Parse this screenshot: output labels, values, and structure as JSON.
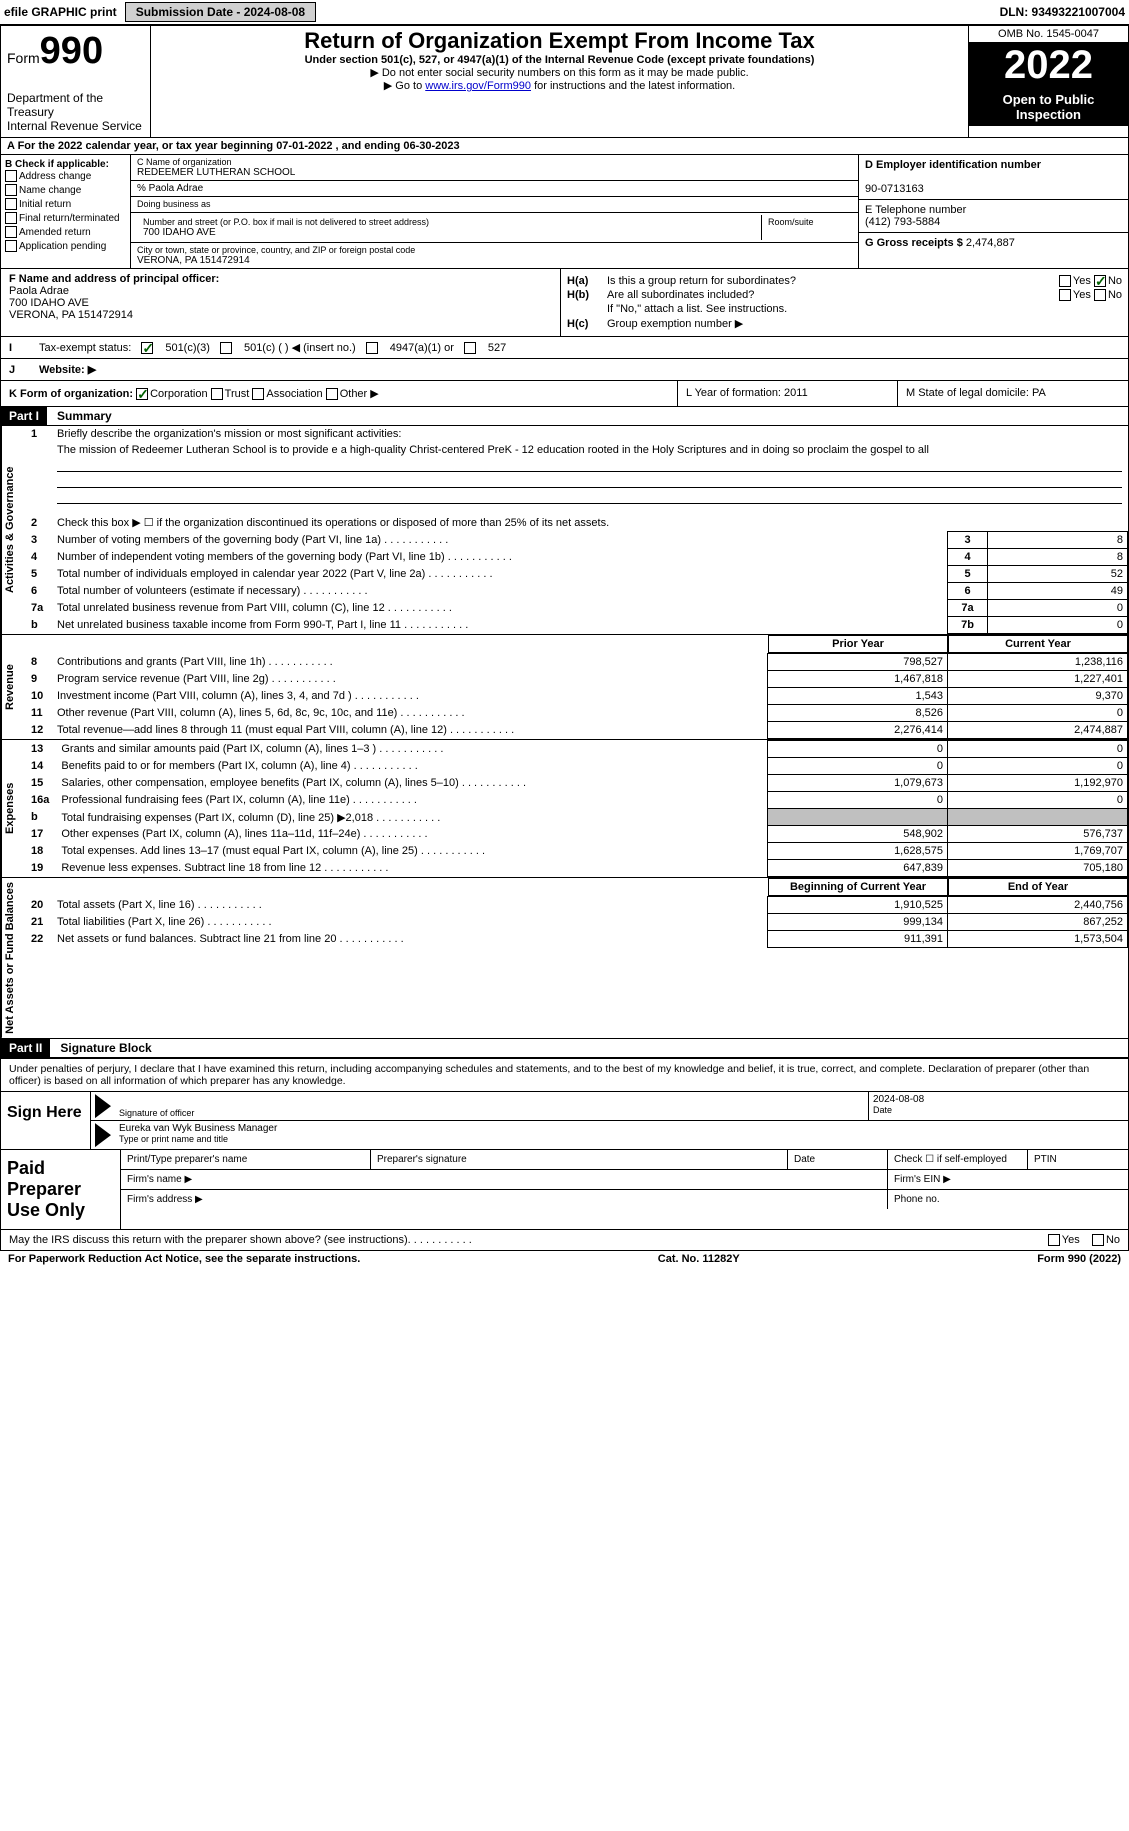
{
  "topbar": {
    "efile": "efile GRAPHIC print",
    "submission": "Submission Date - 2024-08-08",
    "dln": "DLN: 93493221007004"
  },
  "header": {
    "form_word": "Form",
    "form_num": "990",
    "dept": "Department of the Treasury\nInternal Revenue Service",
    "title": "Return of Organization Exempt From Income Tax",
    "sub1": "Under section 501(c), 527, or 4947(a)(1) of the Internal Revenue Code (except private foundations)",
    "sub2": "▶ Do not enter social security numbers on this form as it may be made public.",
    "sub3_pre": "▶ Go to ",
    "sub3_link": "www.irs.gov/Form990",
    "sub3_post": " for instructions and the latest information.",
    "omb": "OMB No. 1545-0047",
    "year": "2022",
    "inspect": "Open to Public Inspection"
  },
  "row_a": "A For the 2022 calendar year, or tax year beginning 07-01-2022    , and ending 06-30-2023",
  "col_b": {
    "hdr": "B Check if applicable:",
    "c1": "Address change",
    "c2": "Name change",
    "c3": "Initial return",
    "c4": "Final return/terminated",
    "c5": "Amended return",
    "c6": "Application pending"
  },
  "col_c": {
    "name_lbl": "C Name of organization",
    "name": "REDEEMER LUTHERAN SCHOOL",
    "care": "% Paola Adrae",
    "dba_lbl": "Doing business as",
    "addr_lbl": "Number and street (or P.O. box if mail is not delivered to street address)",
    "room_lbl": "Room/suite",
    "addr": "700 IDAHO AVE",
    "city_lbl": "City or town, state or province, country, and ZIP or foreign postal code",
    "city": "VERONA, PA  151472914"
  },
  "col_d": {
    "ein_lbl": "D Employer identification number",
    "ein": "90-0713163",
    "tel_lbl": "E Telephone number",
    "tel": "(412) 793-5884",
    "gross_lbl": "G Gross receipts $",
    "gross": "2,474,887"
  },
  "col_f": {
    "lbl": "F Name and address of principal officer:",
    "name": "Paola Adrae",
    "addr1": "700 IDAHO AVE",
    "addr2": "VERONA, PA  151472914"
  },
  "col_h": {
    "ha": "Is this a group return for subordinates?",
    "hb": "Are all subordinates included?",
    "hb_note": "If \"No,\" attach a list. See instructions.",
    "hc": "Group exemption number ▶",
    "yes": "Yes",
    "no": "No"
  },
  "row_i": {
    "lbl": "Tax-exempt status:",
    "o1": "501(c)(3)",
    "o2": "501(c) (  ) ◀ (insert no.)",
    "o3": "4947(a)(1) or",
    "o4": "527"
  },
  "row_j": {
    "lbl": "Website: ▶"
  },
  "row_k": {
    "lbl": "K Form of organization:",
    "o1": "Corporation",
    "o2": "Trust",
    "o3": "Association",
    "o4": "Other ▶",
    "l": "L Year of formation: 2011",
    "m": "M State of legal domicile: PA"
  },
  "part1": {
    "hdr": "Part I",
    "title": "Summary",
    "tab1": "Activities & Governance",
    "tab2": "Revenue",
    "tab3": "Expenses",
    "tab4": "Net Assets or Fund Balances",
    "l1": "Briefly describe the organization's mission or most significant activities:",
    "mission": "The mission of Redeemer Lutheran School is to provide e a high-quality Christ-centered PreK - 12 education rooted in the Holy Scriptures and in doing so proclaim the gospel to all",
    "l2": "Check this box ▶ ☐  if the organization discontinued its operations or disposed of more than 25% of its net assets.",
    "lines_gov": [
      {
        "n": "3",
        "d": "Number of voting members of the governing body (Part VI, line 1a)",
        "b": "3",
        "v": "8"
      },
      {
        "n": "4",
        "d": "Number of independent voting members of the governing body (Part VI, line 1b)",
        "b": "4",
        "v": "8"
      },
      {
        "n": "5",
        "d": "Total number of individuals employed in calendar year 2022 (Part V, line 2a)",
        "b": "5",
        "v": "52"
      },
      {
        "n": "6",
        "d": "Total number of volunteers (estimate if necessary)",
        "b": "6",
        "v": "49"
      },
      {
        "n": "7a",
        "d": "Total unrelated business revenue from Part VIII, column (C), line 12",
        "b": "7a",
        "v": "0"
      },
      {
        "n": "b",
        "d": "Net unrelated business taxable income from Form 990-T, Part I, line 11",
        "b": "7b",
        "v": "0"
      }
    ],
    "prior_yr": "Prior Year",
    "curr_yr": "Current Year",
    "beg_yr": "Beginning of Current Year",
    "end_yr": "End of Year",
    "revenue": [
      {
        "n": "8",
        "d": "Contributions and grants (Part VIII, line 1h)",
        "v1": "798,527",
        "v2": "1,238,116"
      },
      {
        "n": "9",
        "d": "Program service revenue (Part VIII, line 2g)",
        "v1": "1,467,818",
        "v2": "1,227,401"
      },
      {
        "n": "10",
        "d": "Investment income (Part VIII, column (A), lines 3, 4, and 7d )",
        "v1": "1,543",
        "v2": "9,370"
      },
      {
        "n": "11",
        "d": "Other revenue (Part VIII, column (A), lines 5, 6d, 8c, 9c, 10c, and 11e)",
        "v1": "8,526",
        "v2": "0"
      },
      {
        "n": "12",
        "d": "Total revenue—add lines 8 through 11 (must equal Part VIII, column (A), line 12)",
        "v1": "2,276,414",
        "v2": "2,474,887"
      }
    ],
    "expenses": [
      {
        "n": "13",
        "d": "Grants and similar amounts paid (Part IX, column (A), lines 1–3 )",
        "v1": "0",
        "v2": "0"
      },
      {
        "n": "14",
        "d": "Benefits paid to or for members (Part IX, column (A), line 4)",
        "v1": "0",
        "v2": "0"
      },
      {
        "n": "15",
        "d": "Salaries, other compensation, employee benefits (Part IX, column (A), lines 5–10)",
        "v1": "1,079,673",
        "v2": "1,192,970"
      },
      {
        "n": "16a",
        "d": "Professional fundraising fees (Part IX, column (A), line 11e)",
        "v1": "0",
        "v2": "0"
      },
      {
        "n": "b",
        "d": "Total fundraising expenses (Part IX, column (D), line 25) ▶2,018",
        "v1": "grey",
        "v2": "grey"
      },
      {
        "n": "17",
        "d": "Other expenses (Part IX, column (A), lines 11a–11d, 11f–24e)",
        "v1": "548,902",
        "v2": "576,737"
      },
      {
        "n": "18",
        "d": "Total expenses. Add lines 13–17 (must equal Part IX, column (A), line 25)",
        "v1": "1,628,575",
        "v2": "1,769,707"
      },
      {
        "n": "19",
        "d": "Revenue less expenses. Subtract line 18 from line 12",
        "v1": "647,839",
        "v2": "705,180"
      }
    ],
    "netassets": [
      {
        "n": "20",
        "d": "Total assets (Part X, line 16)",
        "v1": "1,910,525",
        "v2": "2,440,756"
      },
      {
        "n": "21",
        "d": "Total liabilities (Part X, line 26)",
        "v1": "999,134",
        "v2": "867,252"
      },
      {
        "n": "22",
        "d": "Net assets or fund balances. Subtract line 21 from line 20",
        "v1": "911,391",
        "v2": "1,573,504"
      }
    ]
  },
  "part2": {
    "hdr": "Part II",
    "title": "Signature Block",
    "declare": "Under penalties of perjury, I declare that I have examined this return, including accompanying schedules and statements, and to the best of my knowledge and belief, it is true, correct, and complete. Declaration of preparer (other than officer) is based on all information of which preparer has any knowledge.",
    "sign_here": "Sign Here",
    "sig_lbl": "Signature of officer",
    "date_lbl": "Date",
    "date": "2024-08-08",
    "name": "Eureka van Wyk  Business Manager",
    "name_lbl": "Type or print name and title",
    "paid": "Paid Preparer Use Only",
    "pr_name": "Print/Type preparer's name",
    "pr_sig": "Preparer's signature",
    "pr_date": "Date",
    "pr_check": "Check ☐ if self-employed",
    "pr_ptin": "PTIN",
    "firm_name": "Firm's name    ▶",
    "firm_ein": "Firm's EIN ▶",
    "firm_addr": "Firm's address ▶",
    "phone": "Phone no."
  },
  "footer": {
    "q": "May the IRS discuss this return with the preparer shown above? (see instructions)",
    "yes": "Yes",
    "no": "No",
    "paper": "For Paperwork Reduction Act Notice, see the separate instructions.",
    "cat": "Cat. No. 11282Y",
    "form": "Form 990 (2022)"
  }
}
